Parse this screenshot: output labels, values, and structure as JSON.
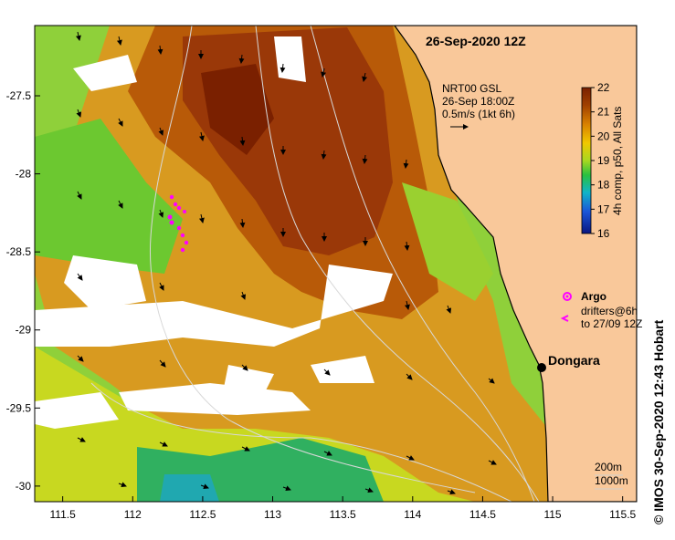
{
  "title": "26-Sep-2020 12Z",
  "currents": {
    "product": "NRT00 GSL",
    "time": "26-Sep 18:00Z",
    "scale": "0.5m/s (1kt 6h)"
  },
  "colorbar": {
    "label": "4h comp, p50, All Sats",
    "ticks": [
      "22",
      "21",
      "20",
      "19",
      "18",
      "17",
      "16"
    ],
    "min": 16,
    "max": 22,
    "colors": [
      "#0a1680",
      "#1a55d8",
      "#10b4c8",
      "#28c040",
      "#a8d820",
      "#f0c800",
      "#d88000",
      "#a04000",
      "#7a2000"
    ]
  },
  "legend": {
    "argo": "Argo",
    "drifters_line1": "drifters@6h",
    "drifters_line2": "to 27/09 12Z"
  },
  "place": {
    "name": "Dongara"
  },
  "isobaths": {
    "line1": "200m",
    "line2": "1000m"
  },
  "axes": {
    "x_ticks": [
      "111.5",
      "112",
      "112.5",
      "113",
      "113.5",
      "114",
      "114.5",
      "115",
      "115.5"
    ],
    "y_ticks": [
      "-27.5",
      "-28",
      "-28.5",
      "-29",
      "-29.5",
      "-30"
    ],
    "x_range": [
      111.3,
      115.6
    ],
    "y_range": [
      -30.1,
      -27.05
    ]
  },
  "credit": "© IMOS 30-Sep-2020 12:43 Hobart",
  "colors": {
    "land": "#f9c89a",
    "cloud": "#ffffff",
    "argo": "#ff00ff"
  }
}
